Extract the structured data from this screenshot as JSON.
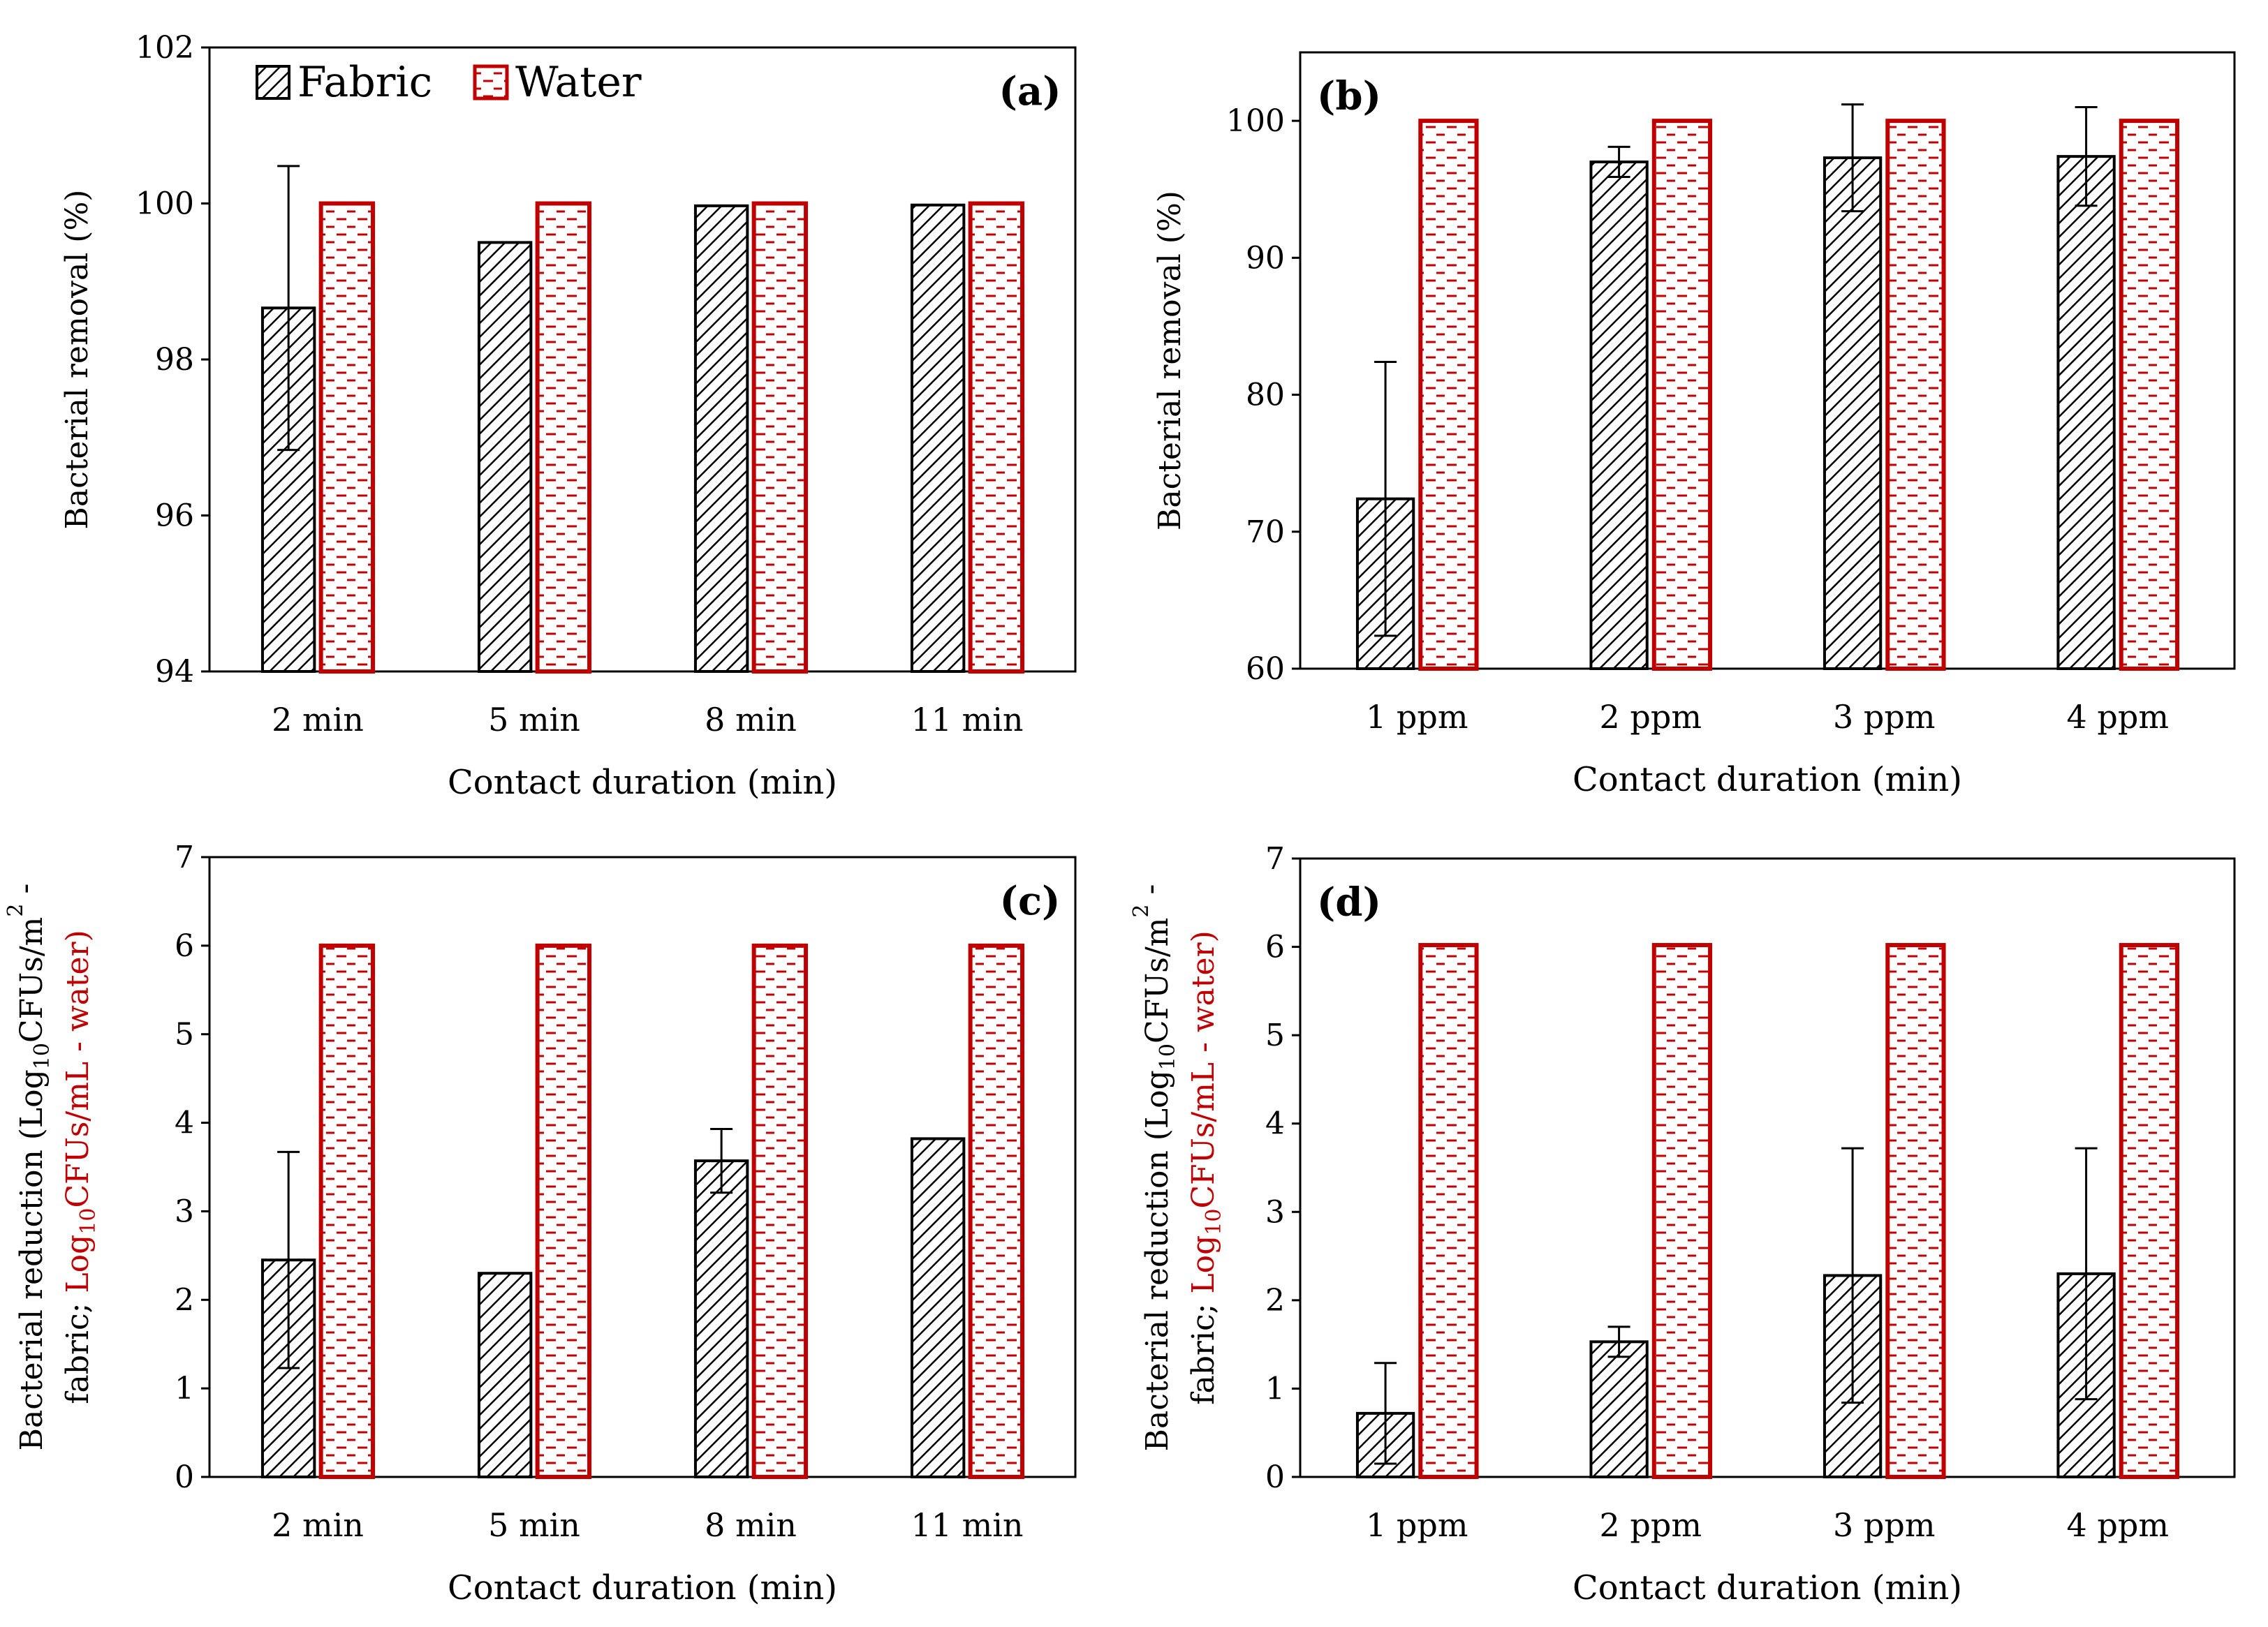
{
  "legend": {
    "fabric": "Fabric",
    "water": "Water"
  },
  "colors": {
    "fabric_edge": "#000000",
    "water_edge": "#c00000",
    "fabric_fill": "#d9d9d9",
    "water_fill": "#ffffff"
  },
  "chart_data": [
    {
      "type": "bar",
      "panel_label": "(a)",
      "categories": [
        "2 min",
        "5 min",
        "8 min",
        "11 min"
      ],
      "series": [
        {
          "name": "Fabric",
          "values": [
            98.66,
            99.5,
            99.97,
            99.98
          ],
          "errors": [
            1.82,
            0,
            0,
            0
          ]
        },
        {
          "name": "Water",
          "values": [
            100,
            100,
            100,
            100
          ],
          "errors": [
            0,
            0,
            0,
            0
          ]
        }
      ],
      "xlabel": "Contact duration (min)",
      "ylabel": "Bacterial removal (%)",
      "ylim": [
        94,
        102
      ],
      "yticks": [
        94,
        96,
        98,
        100,
        102
      ],
      "legend": "top-left"
    },
    {
      "type": "bar",
      "panel_label": "(b)",
      "categories": [
        "1 ppm",
        "2 ppm",
        "3 ppm",
        "4 ppm"
      ],
      "series": [
        {
          "name": "Fabric",
          "values": [
            72.4,
            97.0,
            97.3,
            97.4
          ],
          "errors": [
            10.0,
            1.1,
            3.9,
            3.6
          ]
        },
        {
          "name": "Water",
          "values": [
            100,
            100,
            100,
            100
          ],
          "errors": [
            0,
            0,
            0,
            0
          ]
        }
      ],
      "xlabel": "Contact duration (min)",
      "ylabel": "Bacterial removal (%)",
      "ylim": [
        60,
        105
      ],
      "yticks": [
        60,
        70,
        80,
        90,
        100
      ]
    },
    {
      "type": "bar",
      "panel_label": "(c)",
      "categories": [
        "2 min",
        "5 min",
        "8 min",
        "11 min"
      ],
      "series": [
        {
          "name": "Fabric",
          "values": [
            2.45,
            2.3,
            3.57,
            3.82
          ],
          "errors": [
            1.22,
            0,
            0.36,
            0
          ]
        },
        {
          "name": "Water",
          "values": [
            6.0,
            6.0,
            6.0,
            6.0
          ],
          "errors": [
            0,
            0,
            0,
            0
          ]
        }
      ],
      "xlabel": "Contact duration (min)",
      "ylabel_parts": {
        "line1": "Bacterial  reduction (Log",
        "sub1": "10",
        "line1_end": "CFUs/m",
        "sup1": "2",
        "line1_tail": " -",
        "line2_black": "fabric; ",
        "line2_red": "Log",
        "sub2": "10",
        "line2_red_end": "CFUs/mL - water)"
      },
      "ylim": [
        0,
        7
      ],
      "yticks": [
        0,
        1,
        2,
        3,
        4,
        5,
        6,
        7
      ]
    },
    {
      "type": "bar",
      "panel_label": "(d)",
      "categories": [
        "1 ppm",
        "2 ppm",
        "3 ppm",
        "4 ppm"
      ],
      "series": [
        {
          "name": "Fabric",
          "values": [
            0.72,
            1.53,
            2.28,
            2.3
          ],
          "errors": [
            0.57,
            0.17,
            1.44,
            1.42
          ]
        },
        {
          "name": "Water",
          "values": [
            6.02,
            6.02,
            6.02,
            6.02
          ],
          "errors": [
            0,
            0,
            0,
            0
          ]
        }
      ],
      "xlabel": "Contact duration (min)",
      "ylabel_parts": {
        "line1": "Bacterial  reduction (Log",
        "sub1": "10",
        "line1_end": "CFUs/m",
        "sup1": "2",
        "line1_tail": " -",
        "line2_black": "fabric; ",
        "line2_red": "Log",
        "sub2": "10",
        "line2_red_end": "CFUs/mL - water)"
      },
      "ylim": [
        0,
        7
      ],
      "yticks": [
        0,
        1,
        2,
        3,
        4,
        5,
        6,
        7
      ]
    }
  ]
}
